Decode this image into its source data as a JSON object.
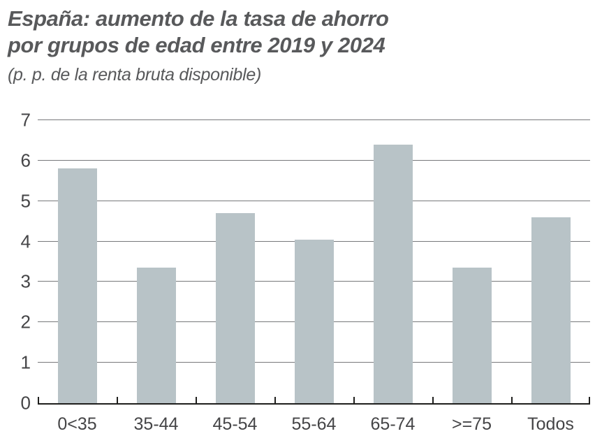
{
  "header": {
    "title_line1": "España: aumento de la tasa de ahorro",
    "title_line2": "por grupos de edad entre 2019 y 2024",
    "subtitle": "(p. p. de la renta bruta disponible)"
  },
  "colors": {
    "title": "#58595b",
    "bar": "#b8c3c7",
    "gridline": "#77787b",
    "axis": "#1f1f1d",
    "tick_label": "#454547"
  },
  "chart_data": {
    "type": "bar",
    "title": "España: aumento de la tasa de ahorro por grupos de edad entre 2019 y 2024",
    "subtitle": "(p. p. de la renta bruta disponible)",
    "categories": [
      "0<35",
      "35-44",
      "45-54",
      "55-64",
      "65-74",
      ">=75",
      "Todos"
    ],
    "values": [
      5.8,
      3.35,
      4.7,
      4.05,
      6.4,
      3.35,
      4.6
    ],
    "xlabel": "",
    "ylabel": "",
    "ylim": [
      0,
      7
    ],
    "y_ticks": [
      0,
      1,
      2,
      3,
      4,
      5,
      6,
      7
    ],
    "grid": "horizontal",
    "legend": "none",
    "bar_color": "#b8c3c7"
  }
}
